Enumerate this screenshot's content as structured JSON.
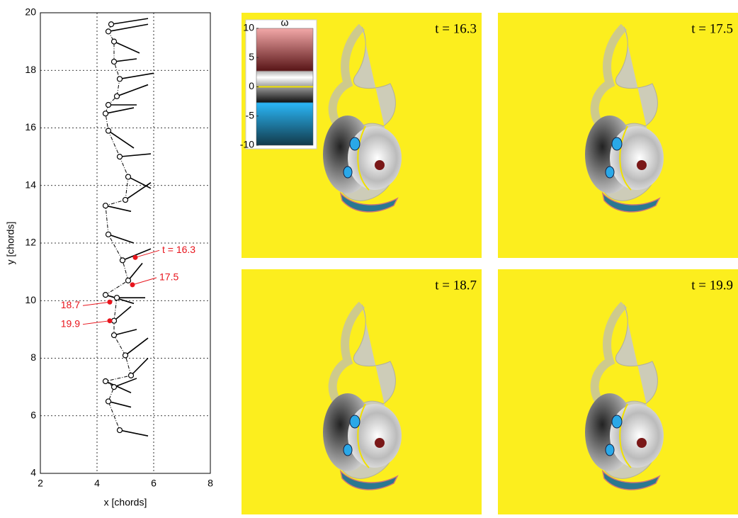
{
  "chart_data": [
    {
      "type": "trajectory",
      "xlabel": "x [chords]",
      "ylabel": "y [chords]",
      "xlim": [
        2,
        8
      ],
      "ylim": [
        4,
        20
      ],
      "xticks": [
        2,
        4,
        6,
        8
      ],
      "yticks": [
        4,
        6,
        8,
        10,
        12,
        14,
        16,
        18,
        20
      ],
      "grid": true,
      "plates": {
        "x": [
          4.5,
          4.4,
          4.6,
          4.6,
          4.8,
          4.7,
          4.4,
          4.3,
          4.4,
          4.8,
          5.1,
          5.0,
          4.3,
          4.4,
          4.9,
          5.1,
          4.3,
          4.7,
          4.6,
          4.6,
          5.0,
          5.2,
          4.3,
          4.6,
          4.4,
          4.8
        ],
        "y": [
          19.6,
          19.35,
          19.0,
          18.3,
          17.7,
          17.1,
          16.8,
          16.5,
          15.9,
          15.0,
          14.3,
          13.5,
          13.3,
          12.3,
          11.4,
          10.7,
          10.2,
          10.1,
          9.3,
          8.8,
          8.1,
          7.4,
          7.2,
          7.0,
          6.5,
          5.5
        ],
        "x2": [
          5.8,
          5.8,
          5.5,
          5.4,
          6.0,
          5.8,
          5.4,
          5.3,
          5.3,
          5.9,
          5.9,
          5.9,
          5.2,
          5.3,
          5.9,
          5.6,
          5.3,
          5.7,
          5.2,
          5.4,
          5.8,
          5.8,
          5.2,
          5.4,
          5.2,
          5.8
        ],
        "y2": [
          19.8,
          19.6,
          18.6,
          18.4,
          17.9,
          17.5,
          16.8,
          16.7,
          15.3,
          15.1,
          13.9,
          14.1,
          13.1,
          12.0,
          11.8,
          11.3,
          9.9,
          10.1,
          9.8,
          9.0,
          8.7,
          8.0,
          6.8,
          7.3,
          6.3,
          5.3
        ]
      },
      "points": [
        {
          "label": "t = 16.3",
          "x": 5.35,
          "y": 11.5
        },
        {
          "label": "17.5",
          "x": 5.25,
          "y": 10.55
        },
        {
          "label": "18.7",
          "x": 4.45,
          "y": 9.95
        },
        {
          "label": "19.9",
          "x": 4.45,
          "y": 9.3
        }
      ],
      "color": "#e8141c"
    },
    {
      "type": "vorticity",
      "background": "#fcee1e",
      "panels": [
        {
          "title": "t = 16.3"
        },
        {
          "title": "t = 17.5"
        },
        {
          "title": "t = 18.7"
        },
        {
          "title": "t = 19.9"
        }
      ],
      "colorbar": {
        "label": "ω",
        "lim": [
          -10,
          10
        ],
        "ticks": [
          10,
          5,
          0,
          -5,
          -10
        ]
      }
    }
  ]
}
